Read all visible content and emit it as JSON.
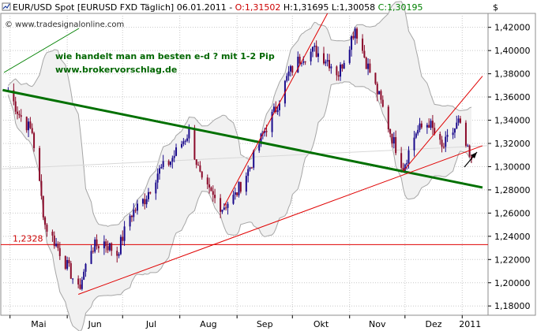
{
  "header": {
    "icon_name": "chart-line-icon",
    "symbol": "EUR/USD Spot [EURUSD FXD",
    "period": "Täglich]",
    "date": "06.01.2011",
    "ohlc_sep": " - ",
    "open_label": "O:",
    "open": "1,31502",
    "high_label": " H:",
    "high": "1,31695",
    "low_label": " L:",
    "low": "1,30058",
    "close_label": " C:",
    "close": "1,30195"
  },
  "currency_symbol": "$",
  "watermark": "© www.tradesignalonline.com",
  "annotation": {
    "line1": "wie handelt man am besten e-d ? mit 1-2 Pip",
    "line2": "www.brokervorschlag.de"
  },
  "colors": {
    "green_text": "#006600",
    "green_trend": "#007000",
    "red": "#e00000",
    "up_candle": "#1a0a8c",
    "down_candle": "#8b0a2a",
    "band_fill": "#f1f1f1",
    "band_line": "#a6a6a6",
    "grid": "#c8c8c8"
  },
  "chart_data": {
    "type": "candlestick",
    "instrument": "EUR/USD Spot",
    "y_range": [
      1.172,
      1.432
    ],
    "y_ticks": [
      "1,42000",
      "1,40000",
      "1,38000",
      "1,36000",
      "1,34000",
      "1,32000",
      "1,30000",
      "1,28000",
      "1,26000",
      "1,24000",
      "1,22000",
      "1,20000",
      "1,18000"
    ],
    "x_labels": [
      "Mai",
      "Jun",
      "Jul",
      "Aug",
      "Sep",
      "Okt",
      "Nov",
      "Dez",
      "2011"
    ],
    "horizontal_line": {
      "value": 1.2328,
      "label": "1,2328"
    },
    "price_path": [
      [
        "2010-04-30",
        1.366
      ],
      [
        "2010-05-06",
        1.345
      ],
      [
        "2010-05-13",
        1.33
      ],
      [
        "2010-05-20",
        1.25
      ],
      [
        "2010-05-27",
        1.23
      ],
      [
        "2010-06-03",
        1.208
      ],
      [
        "2010-06-07",
        1.193
      ],
      [
        "2010-06-14",
        1.23
      ],
      [
        "2010-06-21",
        1.235
      ],
      [
        "2010-06-28",
        1.225
      ],
      [
        "2010-07-05",
        1.258
      ],
      [
        "2010-07-13",
        1.272
      ],
      [
        "2010-07-20",
        1.295
      ],
      [
        "2010-07-27",
        1.305
      ],
      [
        "2010-08-06",
        1.33
      ],
      [
        "2010-08-13",
        1.285
      ],
      [
        "2010-08-24",
        1.265
      ],
      [
        "2010-08-31",
        1.275
      ],
      [
        "2010-09-08",
        1.3
      ],
      [
        "2010-09-15",
        1.328
      ],
      [
        "2010-09-22",
        1.35
      ],
      [
        "2010-09-29",
        1.38
      ],
      [
        "2010-10-06",
        1.395
      ],
      [
        "2010-10-13",
        1.4
      ],
      [
        "2010-10-20",
        1.392
      ],
      [
        "2010-10-26",
        1.38
      ],
      [
        "2010-11-04",
        1.42
      ],
      [
        "2010-11-10",
        1.39
      ],
      [
        "2010-11-17",
        1.36
      ],
      [
        "2010-11-24",
        1.325
      ],
      [
        "2010-11-30",
        1.3
      ],
      [
        "2010-12-07",
        1.33
      ],
      [
        "2010-12-14",
        1.338
      ],
      [
        "2010-12-21",
        1.315
      ],
      [
        "2010-12-30",
        1.338
      ],
      [
        "2011-01-06",
        1.302
      ]
    ],
    "trend_lines": [
      {
        "color": "green",
        "from": [
          "2010-04-27",
          1.366
        ],
        "to": [
          "2011-01-12",
          1.282
        ]
      },
      {
        "color": "red",
        "from": [
          "2010-06-07",
          1.19
        ],
        "to": [
          "2011-01-12",
          1.318
        ]
      },
      {
        "color": "red",
        "from": [
          "2010-08-25",
          1.266
        ],
        "to": [
          "2010-10-20",
          1.432
        ]
      },
      {
        "color": "red",
        "from": [
          "2010-11-30",
          1.296
        ],
        "to": [
          "2011-01-12",
          1.378
        ]
      }
    ]
  }
}
